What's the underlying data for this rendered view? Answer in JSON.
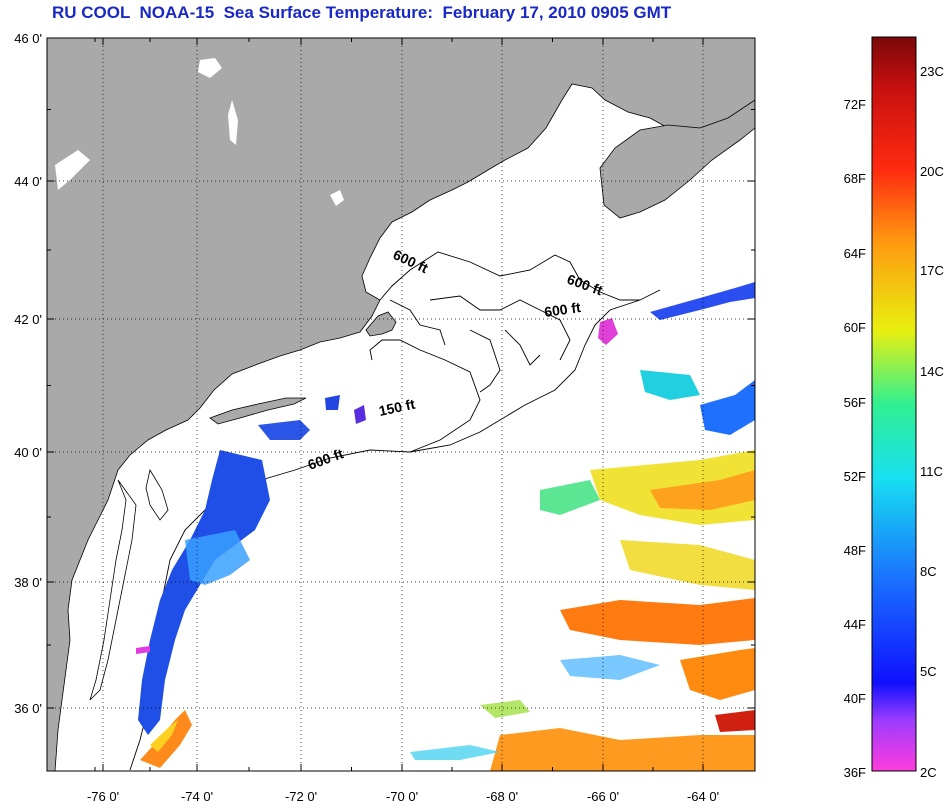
{
  "title": "RU COOL  NOAA-15  Sea Surface Temperature:  February 17, 2010 0905 GMT",
  "map": {
    "lat_labels": [
      "46 0'",
      "44 0'",
      "42 0'",
      "40 0'",
      "38 0'",
      "36 0'"
    ],
    "lon_labels": [
      "-76 0'",
      "-74 0'",
      "-72 0'",
      "-70 0'",
      "-68 0'",
      "-66 0'",
      "-64 0'"
    ],
    "contours": [
      "600 ft",
      "600 ft",
      "600 ft",
      "150 ft",
      "600 ft"
    ]
  },
  "colorbar": {
    "fahrenheit": [
      "72F",
      "68F",
      "64F",
      "60F",
      "56F",
      "52F",
      "48F",
      "44F",
      "40F",
      "36F"
    ],
    "celsius": [
      "23C",
      "20C",
      "17C",
      "14C",
      "11C",
      "8C",
      "5C",
      "2C"
    ]
  },
  "colors": {
    "title": "#1a28c8",
    "land": "#a9a9a9",
    "water": "#ffffff"
  }
}
